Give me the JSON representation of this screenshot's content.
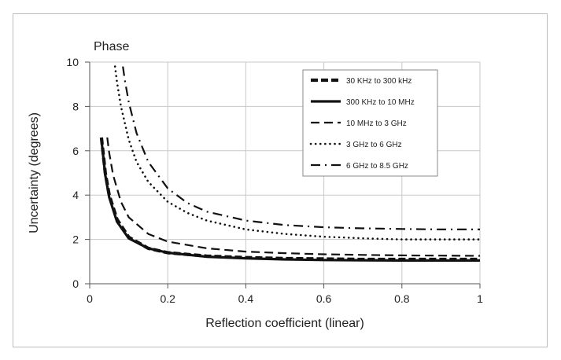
{
  "chart_data": {
    "type": "line",
    "title": "Phase",
    "xlabel": "Reflection coefficient (linear)",
    "ylabel": "Uncertainty (degrees)",
    "xlim": [
      0,
      1
    ],
    "ylim": [
      0,
      10
    ],
    "xticks": [
      "0",
      "0.2",
      "0.4",
      "0.6",
      "0.8",
      "1"
    ],
    "yticks": [
      "0",
      "2",
      "4",
      "6",
      "8",
      "10"
    ],
    "grid": true,
    "legend_position": "top-right",
    "colors": {
      "line": "#111111",
      "grid": "#c8c8c8",
      "frame": "#bdbdbd",
      "axis": "#555555"
    },
    "series": [
      {
        "name": "30 KHz to 300 kHz",
        "style": "heavy-dash",
        "x": [
          0.03,
          0.04,
          0.05,
          0.07,
          0.1,
          0.15,
          0.2,
          0.3,
          0.4,
          0.5,
          0.6,
          0.7,
          0.8,
          0.9,
          1.0
        ],
        "y": [
          6.6,
          5.0,
          4.0,
          2.9,
          2.1,
          1.6,
          1.4,
          1.25,
          1.18,
          1.14,
          1.12,
          1.1,
          1.1,
          1.1,
          1.1
        ]
      },
      {
        "name": "300 KHz to 10 MHz",
        "style": "solid",
        "x": [
          0.03,
          0.04,
          0.05,
          0.07,
          0.1,
          0.15,
          0.2,
          0.3,
          0.4,
          0.5,
          0.6,
          0.7,
          0.8,
          0.9,
          1.0
        ],
        "y": [
          6.5,
          4.9,
          3.9,
          2.8,
          2.05,
          1.6,
          1.4,
          1.22,
          1.15,
          1.1,
          1.07,
          1.06,
          1.05,
          1.05,
          1.05
        ]
      },
      {
        "name": "10 MHz to 3 GHz",
        "style": "dash",
        "x": [
          0.045,
          0.05,
          0.06,
          0.08,
          0.1,
          0.15,
          0.2,
          0.3,
          0.4,
          0.5,
          0.6,
          0.7,
          0.8,
          0.9,
          1.0
        ],
        "y": [
          6.6,
          5.9,
          4.9,
          3.7,
          3.0,
          2.25,
          1.9,
          1.6,
          1.45,
          1.38,
          1.33,
          1.3,
          1.28,
          1.27,
          1.26
        ]
      },
      {
        "name": "3 GHz to 6 GHz",
        "style": "dot",
        "x": [
          0.065,
          0.07,
          0.08,
          0.1,
          0.12,
          0.15,
          0.2,
          0.25,
          0.3,
          0.4,
          0.5,
          0.6,
          0.7,
          0.8,
          0.9,
          1.0
        ],
        "y": [
          9.8,
          9.1,
          8.0,
          6.5,
          5.5,
          4.6,
          3.7,
          3.2,
          2.85,
          2.45,
          2.25,
          2.12,
          2.05,
          2.0,
          2.0,
          2.0
        ]
      },
      {
        "name": "6 GHz to 8.5 GHz",
        "style": "dash-dot",
        "x": [
          0.085,
          0.09,
          0.1,
          0.12,
          0.15,
          0.2,
          0.25,
          0.3,
          0.4,
          0.5,
          0.6,
          0.7,
          0.8,
          0.9,
          1.0
        ],
        "y": [
          9.8,
          9.2,
          8.2,
          6.8,
          5.5,
          4.3,
          3.65,
          3.25,
          2.85,
          2.65,
          2.55,
          2.5,
          2.47,
          2.45,
          2.45
        ]
      }
    ]
  }
}
